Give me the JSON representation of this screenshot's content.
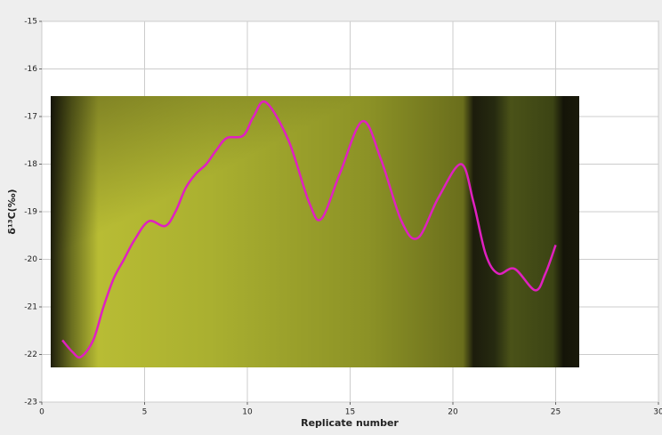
{
  "chart_data": {
    "type": "line",
    "x_label": "Replicate number",
    "y_label": "δ¹³C(‰)",
    "x": [
      1,
      1.5,
      1.9,
      2.5,
      3,
      3.5,
      4,
      4.5,
      5.2,
      6,
      6.5,
      7,
      7.5,
      8,
      8.5,
      9,
      9.8,
      10.3,
      10.9,
      12,
      13,
      13.6,
      14.5,
      15.6,
      16.5,
      17.5,
      18.3,
      19.3,
      20.4,
      21,
      21.6,
      22.2,
      23,
      24,
      24.5,
      25
    ],
    "series": [
      {
        "color": "#e020c0",
        "values": [
          -21.7,
          -21.95,
          -22.05,
          -21.7,
          -21.0,
          -20.4,
          -20.0,
          -19.6,
          -19.2,
          -19.3,
          -19.0,
          -18.5,
          -18.2,
          -18.0,
          -17.7,
          -17.45,
          -17.4,
          -17.0,
          -16.7,
          -17.5,
          -18.8,
          -19.15,
          -18.2,
          -17.1,
          -17.9,
          -19.2,
          -19.55,
          -18.7,
          -18.0,
          -18.8,
          -19.9,
          -20.3,
          -20.2,
          -20.65,
          -20.3,
          -19.7
        ]
      }
    ],
    "xlim": [
      0,
      30
    ],
    "xticks": [
      0,
      5,
      10,
      15,
      20,
      25,
      30
    ],
    "ylim": [
      -23,
      -15
    ],
    "yticks": [
      -23,
      -22,
      -21,
      -20,
      -19,
      -18,
      -17,
      -16,
      -15
    ],
    "grid": true
  }
}
